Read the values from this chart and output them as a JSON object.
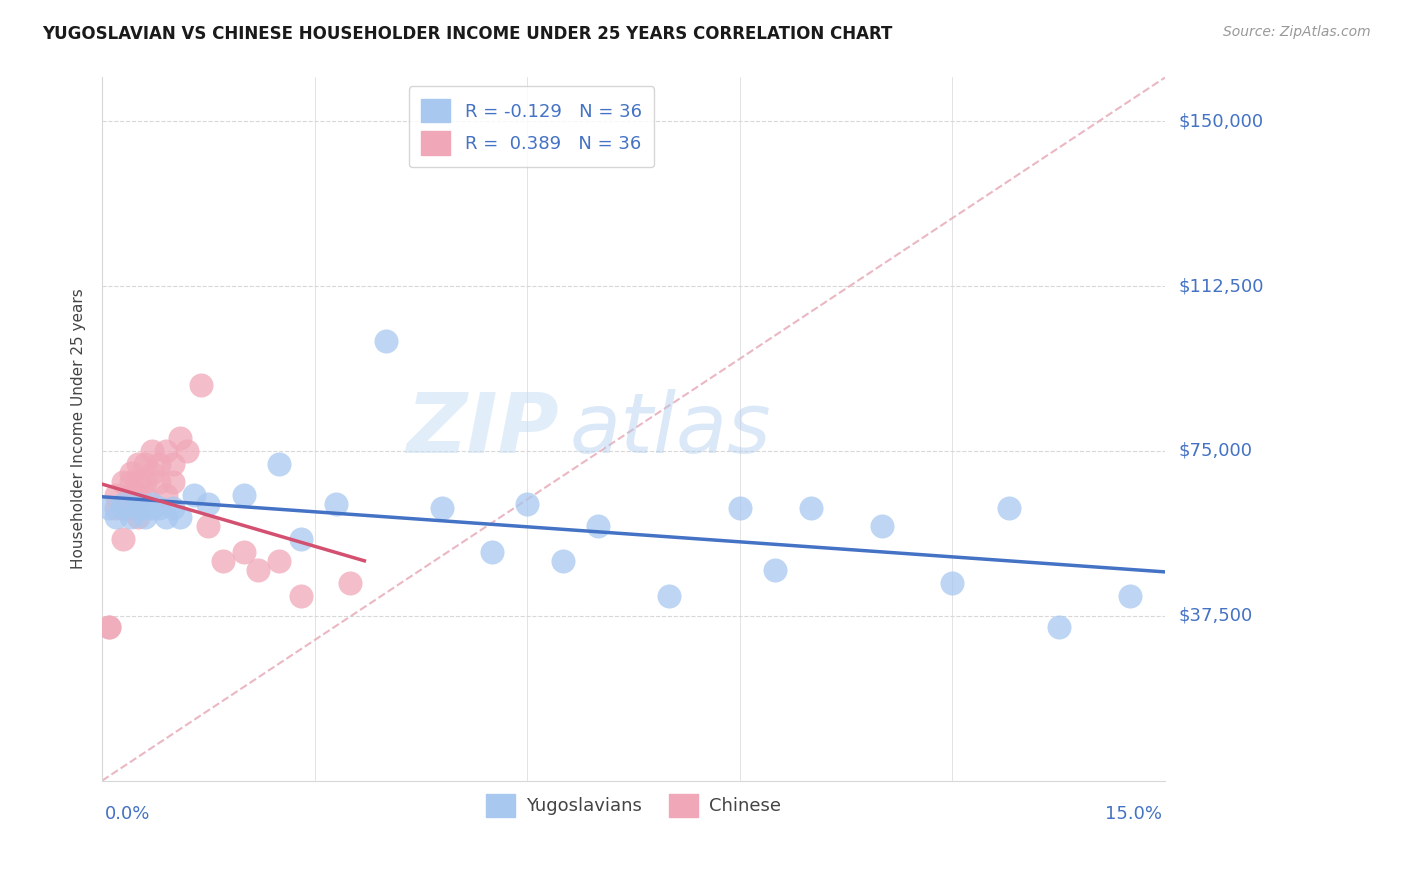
{
  "title": "YUGOSLAVIAN VS CHINESE HOUSEHOLDER INCOME UNDER 25 YEARS CORRELATION CHART",
  "source": "Source: ZipAtlas.com",
  "ylabel": "Householder Income Under 25 years",
  "yug_R": -0.129,
  "yug_N": 36,
  "chi_R": 0.389,
  "chi_N": 36,
  "legend_yug_label": "Yugoslavians",
  "legend_chi_label": "Chinese",
  "yug_color": "#a8c8f0",
  "chi_color": "#f0a8b8",
  "yug_line_color": "#4472c4",
  "chi_line_color": "#d45070",
  "diagonal_color": "#e8b0bc",
  "background_color": "#ffffff",
  "grid_color": "#d8d8d8",
  "xmin": 0.0,
  "xmax": 0.15,
  "ymin": 0,
  "ymax": 160000,
  "ytick_values": [
    37500,
    75000,
    112500,
    150000
  ],
  "ytick_labels": [
    "$37,500",
    "$75,000",
    "$112,500",
    "$150,000"
  ],
  "yug_x": [
    0.001,
    0.002,
    0.003,
    0.003,
    0.004,
    0.005,
    0.005,
    0.006,
    0.006,
    0.007,
    0.007,
    0.008,
    0.009,
    0.01,
    0.011,
    0.013,
    0.015,
    0.02,
    0.025,
    0.028,
    0.033,
    0.04,
    0.048,
    0.055,
    0.06,
    0.065,
    0.07,
    0.08,
    0.09,
    0.095,
    0.1,
    0.11,
    0.12,
    0.128,
    0.135,
    0.145
  ],
  "yug_y": [
    62000,
    60000,
    62000,
    63000,
    60000,
    63000,
    62000,
    62000,
    60000,
    62000,
    63000,
    62000,
    60000,
    62000,
    60000,
    65000,
    63000,
    65000,
    72000,
    55000,
    63000,
    100000,
    62000,
    52000,
    63000,
    50000,
    58000,
    42000,
    62000,
    48000,
    62000,
    58000,
    45000,
    62000,
    35000,
    42000
  ],
  "chi_x": [
    0.001,
    0.001,
    0.002,
    0.002,
    0.003,
    0.003,
    0.003,
    0.004,
    0.004,
    0.004,
    0.004,
    0.005,
    0.005,
    0.005,
    0.005,
    0.006,
    0.006,
    0.006,
    0.007,
    0.007,
    0.008,
    0.008,
    0.009,
    0.009,
    0.01,
    0.01,
    0.011,
    0.012,
    0.014,
    0.015,
    0.017,
    0.02,
    0.022,
    0.025,
    0.028,
    0.035
  ],
  "chi_y": [
    35000,
    35000,
    62000,
    65000,
    55000,
    62000,
    68000,
    62000,
    65000,
    68000,
    70000,
    60000,
    65000,
    68000,
    72000,
    65000,
    68000,
    72000,
    70000,
    75000,
    68000,
    72000,
    65000,
    75000,
    68000,
    72000,
    78000,
    75000,
    90000,
    58000,
    50000,
    52000,
    48000,
    50000,
    42000,
    45000
  ]
}
